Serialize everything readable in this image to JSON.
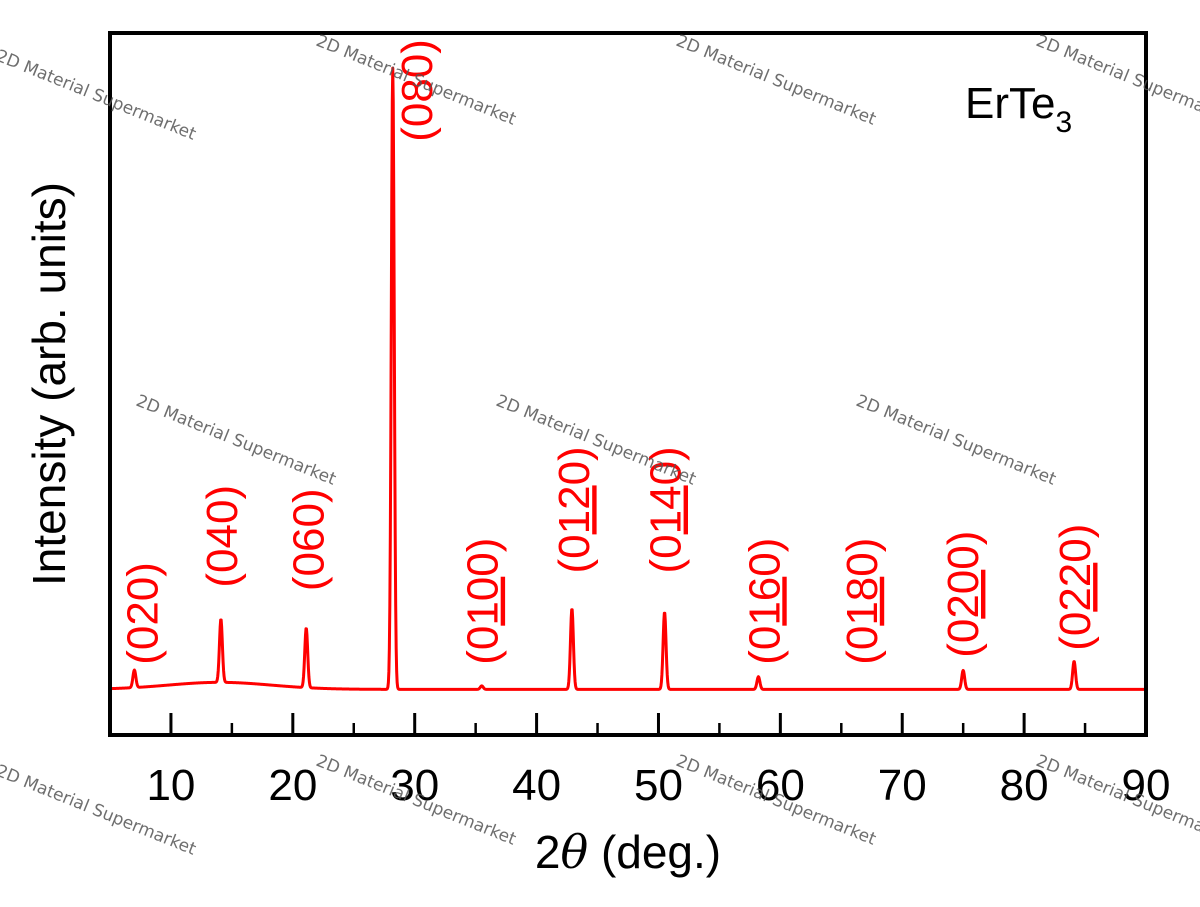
{
  "chart_data": {
    "type": "line",
    "title": "",
    "sample_label": {
      "base": "ErTe",
      "subscript": "3"
    },
    "xlabel": {
      "prefix": "2",
      "symbol": "θ",
      "suffix": " (deg.)"
    },
    "ylabel": "Intensity (arb. units)",
    "xlim": [
      5,
      90
    ],
    "ylim": [
      0,
      100
    ],
    "x_ticks": [
      10,
      20,
      30,
      40,
      50,
      60,
      70,
      80,
      90
    ],
    "x_tick_labels": [
      "10",
      "20",
      "30",
      "40",
      "50",
      "60",
      "70",
      "80",
      "90"
    ],
    "y_ticks_shown": false,
    "grid": false,
    "legend": "none",
    "series": [
      {
        "color": "#ff0000",
        "baseline": 6.5,
        "broad_hump": {
          "center": 14,
          "height": 1.0,
          "width": 6
        },
        "peaks": [
          {
            "x": 7.0,
            "y": 9.0
          },
          {
            "x": 14.1,
            "y": 15.5
          },
          {
            "x": 21.1,
            "y": 15.0
          },
          {
            "x": 28.2,
            "y": 95.0
          },
          {
            "x": 35.5,
            "y": 7.0
          },
          {
            "x": 42.9,
            "y": 18.0
          },
          {
            "x": 50.5,
            "y": 17.5
          },
          {
            "x": 58.2,
            "y": 8.3
          },
          {
            "x": 75.0,
            "y": 9.2
          },
          {
            "x": 84.1,
            "y": 10.5
          }
        ]
      }
    ],
    "annotations": [
      {
        "x": 7.6,
        "y": 10.0,
        "label": "(020)"
      },
      {
        "x": 14.1,
        "y": 21.0,
        "label": "(040)"
      },
      {
        "x": 21.2,
        "y": 20.5,
        "label": "(060)"
      },
      {
        "x": 30.1,
        "y": 84.5,
        "label": "(080)"
      },
      {
        "x": 35.5,
        "y": 10.0,
        "label": "(0100)",
        "underlined": "10"
      },
      {
        "x": 43.0,
        "y": 23.0,
        "label": "(0120)",
        "underlined": "12"
      },
      {
        "x": 50.5,
        "y": 23.0,
        "label": "(0140)",
        "underlined": "14"
      },
      {
        "x": 58.6,
        "y": 10.0,
        "label": "(0160)",
        "underlined": "16"
      },
      {
        "x": 66.6,
        "y": 10.0,
        "label": "(0180)",
        "underlined": "18"
      },
      {
        "x": 74.9,
        "y": 11.0,
        "label": "(0200)",
        "underlined": "20"
      },
      {
        "x": 84.1,
        "y": 12.0,
        "label": "(0220)",
        "underlined": "22"
      }
    ]
  },
  "watermark": {
    "text": "2D Material Supermarket"
  }
}
